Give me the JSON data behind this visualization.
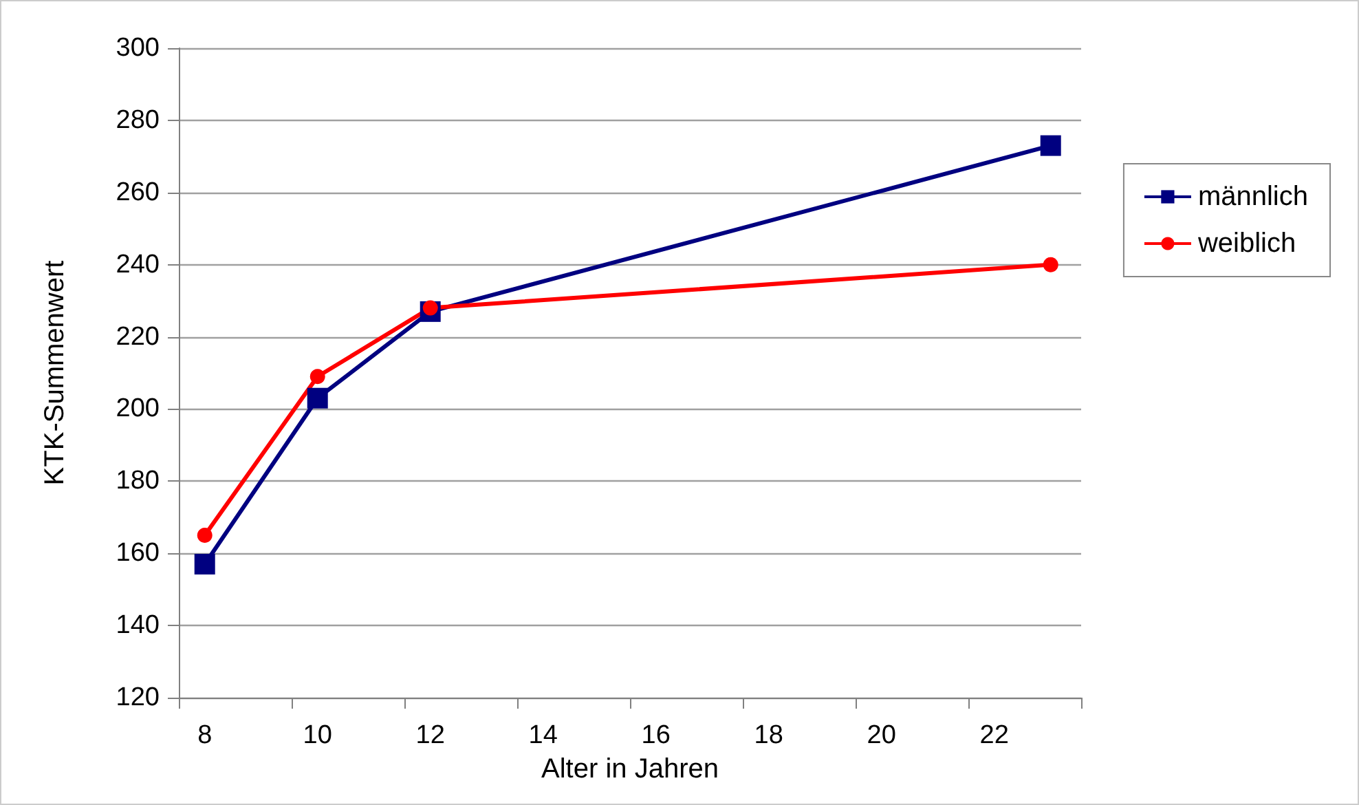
{
  "chart_data": {
    "type": "line",
    "xlabel": "Alter in Jahren",
    "ylabel": "KTK-Summenwert",
    "xlim": [
      7.54,
      23.54
    ],
    "xticks": [
      {
        "value": 7.54,
        "label": null
      },
      {
        "value": 8,
        "label": "8"
      },
      {
        "value": 9.54,
        "label": null
      },
      {
        "value": 10,
        "label": "10"
      },
      {
        "value": 11.54,
        "label": null
      },
      {
        "value": 12,
        "label": "12"
      },
      {
        "value": 13.54,
        "label": null
      },
      {
        "value": 14,
        "label": "14"
      },
      {
        "value": 15.54,
        "label": null
      },
      {
        "value": 16,
        "label": "16"
      },
      {
        "value": 17.54,
        "label": null
      },
      {
        "value": 18,
        "label": "18"
      },
      {
        "value": 19.54,
        "label": null
      },
      {
        "value": 20,
        "label": "20"
      },
      {
        "value": 21.54,
        "label": null
      },
      {
        "value": 22,
        "label": "22"
      },
      {
        "value": 23.54,
        "label": null
      }
    ],
    "ylim": [
      120,
      300
    ],
    "yticks": [
      120,
      140,
      160,
      180,
      200,
      220,
      240,
      260,
      280,
      300
    ],
    "grid": "y",
    "legend": "right",
    "series": [
      {
        "name": "männlich",
        "color": "#000080",
        "marker": "square",
        "x": [
          8,
          10,
          12,
          23
        ],
        "values": [
          157,
          203,
          227,
          273
        ]
      },
      {
        "name": "weiblich",
        "color": "#ff0000",
        "marker": "circle",
        "x": [
          8,
          10,
          12,
          23
        ],
        "values": [
          165,
          209,
          228,
          240
        ]
      }
    ]
  }
}
